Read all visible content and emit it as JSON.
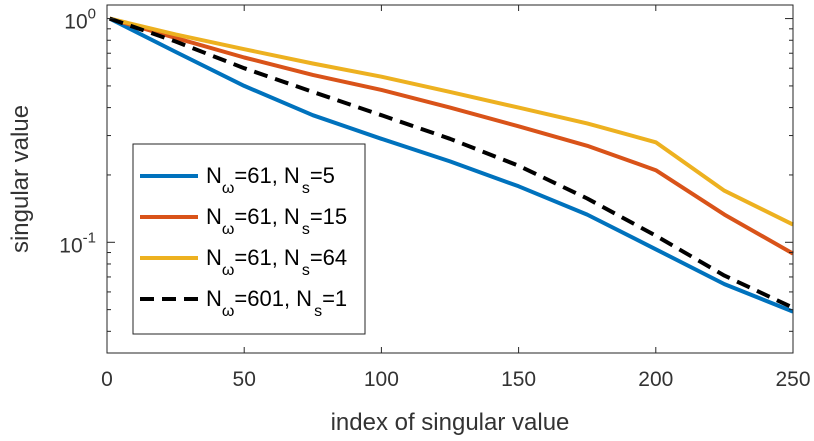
{
  "chart_data": {
    "type": "line",
    "title": "",
    "xlabel": "index of singular value",
    "ylabel": "singular value",
    "xlim": [
      0,
      250
    ],
    "ylim": [
      0.032,
      1.15
    ],
    "yscale": "log",
    "grid": false,
    "legend_position": "lower-left",
    "xticks": [
      0,
      50,
      100,
      150,
      200,
      250
    ],
    "xtick_labels": [
      "0",
      "50",
      "100",
      "150",
      "200",
      "250"
    ],
    "yticks": [
      {
        "value": 1,
        "base": "10",
        "exponent": "0"
      },
      {
        "value": 0.1,
        "base": "10",
        "exponent": "-1"
      }
    ],
    "x": [
      1,
      25,
      50,
      75,
      100,
      125,
      150,
      175,
      200,
      225,
      250
    ],
    "series": [
      {
        "name": "N_ω=61, N_s=5",
        "legend": {
          "base1": "N",
          "sub1": "ω",
          "mid": "=61, N",
          "sub2": "s",
          "end": "=5"
        },
        "color": "#0072BD",
        "dash": "solid",
        "values": [
          1.0,
          0.71,
          0.5,
          0.37,
          0.29,
          0.23,
          0.178,
          0.133,
          0.093,
          0.065,
          0.049
        ]
      },
      {
        "name": "N_ω=61, N_s=15",
        "legend": {
          "base1": "N",
          "sub1": "ω",
          "mid": "=61, N",
          "sub2": "s",
          "end": "=15"
        },
        "color": "#D95319",
        "dash": "solid",
        "values": [
          1.0,
          0.82,
          0.67,
          0.56,
          0.48,
          0.4,
          0.33,
          0.27,
          0.21,
          0.133,
          0.089
        ]
      },
      {
        "name": "N_ω=61, N_s=64",
        "legend": {
          "base1": "N",
          "sub1": "ω",
          "mid": "=61, N",
          "sub2": "s",
          "end": "=64"
        },
        "color": "#EDB120",
        "dash": "solid",
        "values": [
          1.0,
          0.85,
          0.73,
          0.63,
          0.55,
          0.47,
          0.4,
          0.34,
          0.28,
          0.17,
          0.12
        ]
      },
      {
        "name": "N_ω=601, N_s=1",
        "legend": {
          "base1": "N",
          "sub1": "ω",
          "mid": "=601, N",
          "sub2": "s",
          "end": "=1"
        },
        "color": "#000000",
        "dash": "dashed",
        "values": [
          1.0,
          0.79,
          0.6,
          0.47,
          0.37,
          0.29,
          0.22,
          0.157,
          0.107,
          0.071,
          0.051
        ]
      }
    ]
  }
}
